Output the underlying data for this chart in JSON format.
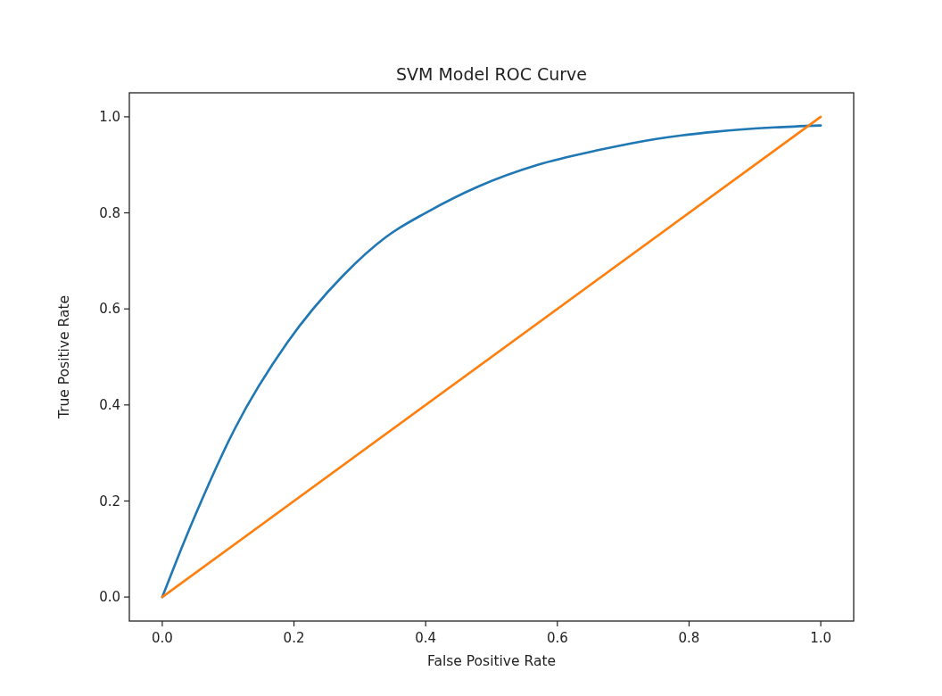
{
  "chart_data": {
    "type": "line",
    "title": "SVM Model ROC Curve",
    "xlabel": "False Positive Rate",
    "ylabel": "True Positive Rate",
    "xlim": [
      -0.05,
      1.05
    ],
    "ylim": [
      -0.05,
      1.05
    ],
    "xticks": [
      {
        "value": 0,
        "label": "0.0"
      },
      {
        "value": 0.2,
        "label": "0.2"
      },
      {
        "value": 0.4,
        "label": "0.4"
      },
      {
        "value": 0.6,
        "label": "0.6"
      },
      {
        "value": 0.8,
        "label": "0.8"
      },
      {
        "value": 1,
        "label": "1.0"
      }
    ],
    "yticks": [
      {
        "value": 0,
        "label": "0.0"
      },
      {
        "value": 0.2,
        "label": "0.2"
      },
      {
        "value": 0.4,
        "label": "0.4"
      },
      {
        "value": 0.6,
        "label": "0.6"
      },
      {
        "value": 0.8,
        "label": "0.8"
      },
      {
        "value": 1,
        "label": "1.0"
      }
    ],
    "grid": false,
    "series": [
      {
        "color": "#1f77b4",
        "x": [
          0,
          0.02,
          0.05,
          0.11,
          0.19,
          0.275,
          0.34,
          0.4,
          0.48,
          0.57,
          0.66,
          0.75,
          0.84,
          0.93,
          1.0
        ],
        "values": [
          0,
          0.07,
          0.17,
          0.35,
          0.53,
          0.67,
          0.75,
          0.8,
          0.855,
          0.9,
          0.93,
          0.954,
          0.969,
          0.978,
          0.982
        ]
      },
      {
        "color": "#ff7f0e",
        "x": [
          0,
          1
        ],
        "values": [
          0,
          1
        ]
      }
    ]
  }
}
